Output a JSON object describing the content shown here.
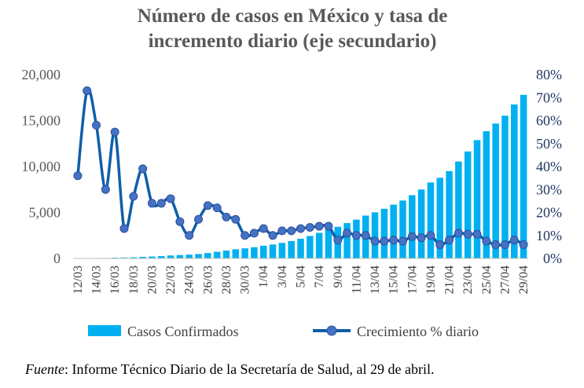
{
  "title_lines": [
    "Número de casos en México y tasa de",
    "incremento diario (eje secundario)"
  ],
  "source": {
    "label": "Fuente",
    "text": ": Informe Técnico Diario de la Secretaría de Salud, al 29 de abril."
  },
  "colors": {
    "bars": "#00b0f0",
    "line": "#0f5fa8",
    "marker": "#4472c4",
    "marker_edge": "#2f4f9f",
    "right_axis_text": "#1f3864"
  },
  "chart_data": {
    "type": "bar",
    "title": "Número de casos en México y tasa de incremento diario (eje secundario)",
    "categories": [
      "12/03",
      "13/03",
      "14/03",
      "15/03",
      "16/03",
      "17/03",
      "18/03",
      "19/03",
      "20/03",
      "21/03",
      "22/03",
      "23/03",
      "24/03",
      "25/03",
      "26/03",
      "27/03",
      "28/03",
      "29/03",
      "30/03",
      "31/03",
      "1/04",
      "2/04",
      "3/04",
      "4/04",
      "5/04",
      "6/04",
      "7/04",
      "8/04",
      "9/04",
      "10/04",
      "11/04",
      "12/04",
      "13/04",
      "14/04",
      "15/04",
      "16/04",
      "17/04",
      "18/04",
      "19/04",
      "20/04",
      "21/04",
      "22/04",
      "23/04",
      "24/04",
      "25/04",
      "26/04",
      "27/04",
      "28/04",
      "29/04"
    ],
    "x_tick_labels": [
      "12/03",
      "14/03",
      "16/03",
      "18/03",
      "20/03",
      "22/03",
      "24/03",
      "26/03",
      "28/03",
      "30/03",
      "1/04",
      "3/04",
      "5/04",
      "7/04",
      "9/04",
      "11/04",
      "13/04",
      "15/04",
      "17/04",
      "19/04",
      "21/04",
      "23/04",
      "25/04",
      "27/04",
      "29/04"
    ],
    "series": [
      {
        "name": "Casos Confirmados",
        "axis": "left",
        "type": "bar",
        "values": [
          15,
          26,
          41,
          53,
          82,
          93,
          118,
          164,
          203,
          251,
          316,
          367,
          405,
          475,
          585,
          717,
          848,
          993,
          1094,
          1215,
          1378,
          1510,
          1688,
          1890,
          2143,
          2439,
          2785,
          3181,
          3441,
          3844,
          4219,
          4661,
          5014,
          5399,
          5847,
          6297,
          6875,
          7497,
          8261,
          8772,
          9501,
          10544,
          11633,
          12872,
          13842,
          14677,
          15529,
          16752,
          17799
        ]
      },
      {
        "name": "Crecimiento % diario",
        "axis": "right",
        "type": "line",
        "values": [
          36,
          73,
          58,
          30,
          55,
          13,
          27,
          39,
          24,
          24,
          26,
          16,
          10,
          17,
          23,
          22,
          18,
          17,
          10,
          11,
          13,
          10,
          12,
          12,
          13,
          13.5,
          14,
          14,
          8,
          11,
          10,
          10,
          7.5,
          7.5,
          8,
          7.5,
          9.5,
          9,
          10,
          6,
          8,
          11,
          10.5,
          10.5,
          7.5,
          6,
          6,
          8,
          6
        ]
      }
    ],
    "y_left": {
      "min": 0,
      "max": 20000,
      "ticks": [
        "0",
        "5,000",
        "10,000",
        "15,000",
        "20,000"
      ]
    },
    "y_right": {
      "min": 0,
      "max": 80,
      "ticks": [
        "0%",
        "10%",
        "20%",
        "30%",
        "40%",
        "50%",
        "60%",
        "70%",
        "80%"
      ]
    },
    "grid": false,
    "legend_position": "bottom"
  }
}
